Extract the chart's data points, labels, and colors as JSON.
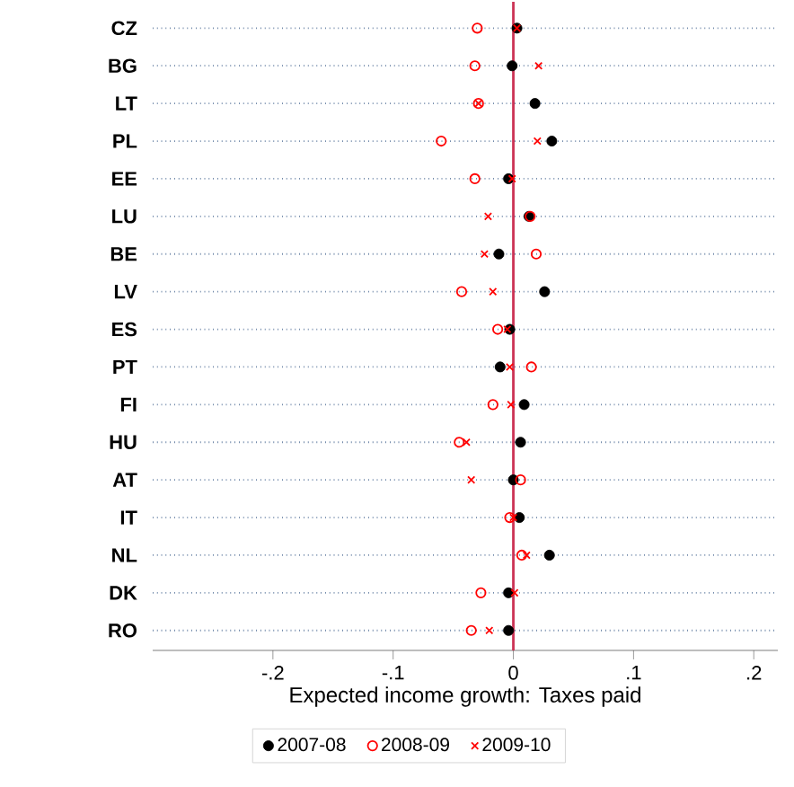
{
  "chart_data": {
    "type": "scatter",
    "xlabel": "Expected income growth: Taxes paid",
    "categories": [
      "CZ",
      "BG",
      "LT",
      "PL",
      "EE",
      "LU",
      "BE",
      "LV",
      "ES",
      "PT",
      "FI",
      "HU",
      "AT",
      "IT",
      "NL",
      "DK",
      "RO"
    ],
    "series": [
      {
        "name": "2007-08",
        "color": "#000000",
        "marker": "circle",
        "values": [
          0.003,
          -0.001,
          0.018,
          0.032,
          -0.004,
          0.013,
          -0.012,
          0.026,
          -0.003,
          -0.011,
          0.009,
          0.006,
          0.0,
          0.005,
          0.03,
          -0.004,
          -0.004
        ]
      },
      {
        "name": "2008-09",
        "color": "#ff0000",
        "marker": "open circle",
        "values": [
          -0.03,
          -0.032,
          -0.029,
          -0.06,
          -0.032,
          0.014,
          0.019,
          -0.043,
          -0.013,
          0.015,
          -0.017,
          -0.045,
          0.006,
          -0.003,
          0.007,
          -0.027,
          -0.035
        ]
      },
      {
        "name": "2009-10",
        "color": "#ff0000",
        "marker": "cross",
        "values": [
          0.003,
          0.021,
          -0.029,
          0.02,
          -0.001,
          -0.021,
          -0.024,
          -0.017,
          -0.005,
          -0.003,
          -0.002,
          -0.039,
          -0.035,
          0.0,
          0.011,
          0.001,
          -0.02
        ]
      }
    ],
    "xlim": [
      -0.3,
      0.22
    ],
    "xticks": [
      {
        "value": -0.2,
        "label": "-.2"
      },
      {
        "value": -0.1,
        "label": "-.1"
      },
      0,
      {
        "value": 0.1,
        "label": ".1"
      },
      {
        "value": 0.2,
        "label": ".2"
      }
    ],
    "ref_lines": [
      {
        "axis": "x",
        "value": 0,
        "color": "#cc3355"
      }
    ],
    "grid": "y",
    "orientation": "horizontal",
    "legend": "bottom"
  }
}
